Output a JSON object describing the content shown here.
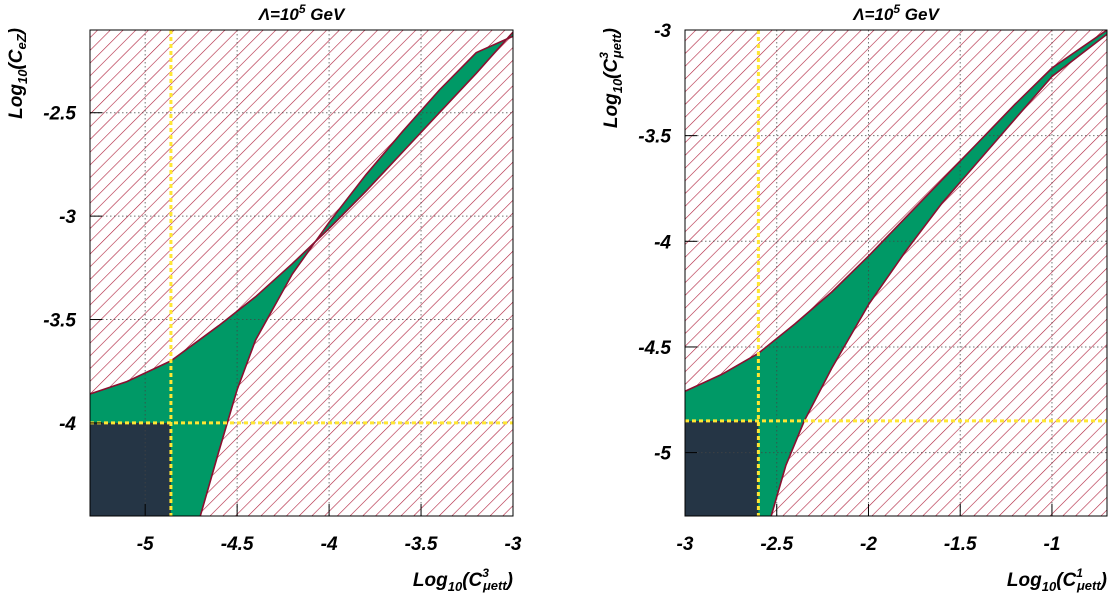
{
  "chart_data": [
    {
      "type": "area",
      "title": "Λ=10⁵ GeV",
      "title_prefix": "Λ=10",
      "title_exponent": "5",
      "title_suffix": " GeV",
      "xlabel": "Log10(C3μett)",
      "xlabel_parts": {
        "base": "Log",
        "sub": "10",
        "open": "(C",
        "sup": "3",
        "sub2": "μett",
        "close": ")"
      },
      "ylabel": "Log10(CeZ)",
      "ylabel_parts": {
        "base": "Log",
        "sub": "10",
        "open": "(C",
        "sup": "",
        "sub2": "eZ",
        "close": ")"
      },
      "xlim": [
        -5.3,
        -3.0
      ],
      "ylim": [
        -4.45,
        -2.1
      ],
      "xticks": [
        -5,
        -4.5,
        -4,
        -3.5,
        -3
      ],
      "xtick_labels": [
        "-5",
        "-4.5",
        "-4",
        "-3.5",
        "-3"
      ],
      "yticks": [
        -2.5,
        -3,
        -3.5,
        -4
      ],
      "ytick_labels": [
        "-2.5",
        "-3",
        "-3.5",
        "-4"
      ],
      "grid": true,
      "series": [
        {
          "role": "allowed-region-upper-boundary",
          "x": [
            -5.3,
            -5.1,
            -4.86,
            -4.6,
            -4.4,
            -4.2,
            -4.0,
            -3.8,
            -3.6,
            -3.4,
            -3.2,
            -3.0
          ],
          "y": [
            -3.86,
            -3.8,
            -3.7,
            -3.53,
            -3.39,
            -3.23,
            -3.06,
            -2.88,
            -2.69,
            -2.5,
            -2.31,
            -2.11
          ]
        },
        {
          "role": "allowed-region-lower-boundary",
          "x": [
            -4.7,
            -4.6,
            -4.5,
            -4.4,
            -4.2,
            -4.0,
            -3.8,
            -3.6,
            -3.4,
            -3.2,
            -3.0
          ],
          "y": [
            -4.45,
            -4.14,
            -3.84,
            -3.6,
            -3.28,
            -3.03,
            -2.8,
            -2.59,
            -2.39,
            -2.21,
            -2.13
          ]
        }
      ],
      "reference_lines": {
        "x": -4.86,
        "y": -4.0
      },
      "colors": {
        "allowed": "#009966",
        "excluded_hatch": "#b0203c",
        "corner": "#253545",
        "reference": "#ffe633",
        "boundary": "#8a1030"
      }
    },
    {
      "type": "area",
      "title": "Λ=10⁵ GeV",
      "title_prefix": "Λ=10",
      "title_exponent": "5",
      "title_suffix": " GeV",
      "xlabel": "Log10(C1μett)",
      "xlabel_parts": {
        "base": "Log",
        "sub": "10",
        "open": "(C",
        "sup": "1",
        "sub2": "μett",
        "close": ")"
      },
      "ylabel": "Log10(C3μett)",
      "ylabel_parts": {
        "base": "Log",
        "sub": "10",
        "open": "(C",
        "sup": "3",
        "sub2": "μett",
        "close": ")"
      },
      "xlim": [
        -3.0,
        -0.7
      ],
      "ylim": [
        -5.3,
        -3.0
      ],
      "xticks": [
        -3,
        -2.5,
        -2,
        -1.5,
        -1
      ],
      "xtick_labels": [
        "-3",
        "-2.5",
        "-2",
        "-1.5",
        "-1"
      ],
      "yticks": [
        -3,
        -3.5,
        -4,
        -4.5,
        -5
      ],
      "ytick_labels": [
        "-3",
        "-3.5",
        "-4",
        "-4.5",
        "-5"
      ],
      "grid": true,
      "series": [
        {
          "role": "allowed-region-upper-boundary",
          "x": [
            -3.0,
            -2.8,
            -2.6,
            -2.4,
            -2.2,
            -2.0,
            -1.8,
            -1.6,
            -1.4,
            -1.2,
            -1.0,
            -0.7
          ],
          "y": [
            -4.71,
            -4.63,
            -4.53,
            -4.39,
            -4.24,
            -4.07,
            -3.89,
            -3.71,
            -3.53,
            -3.35,
            -3.18,
            -3.0
          ]
        },
        {
          "role": "allowed-region-lower-boundary",
          "x": [
            -2.53,
            -2.45,
            -2.35,
            -2.2,
            -2.0,
            -1.8,
            -1.6,
            -1.4,
            -1.2,
            -1.0,
            -0.85,
            -0.7
          ],
          "y": [
            -5.3,
            -5.06,
            -4.85,
            -4.6,
            -4.3,
            -4.05,
            -3.82,
            -3.62,
            -3.42,
            -3.22,
            -3.12,
            -3.02
          ]
        }
      ],
      "reference_lines": {
        "x": -2.6,
        "y": -4.85
      },
      "colors": {
        "allowed": "#009966",
        "excluded_hatch": "#b0203c",
        "corner": "#253545",
        "reference": "#ffe633",
        "boundary": "#8a1030"
      }
    }
  ]
}
